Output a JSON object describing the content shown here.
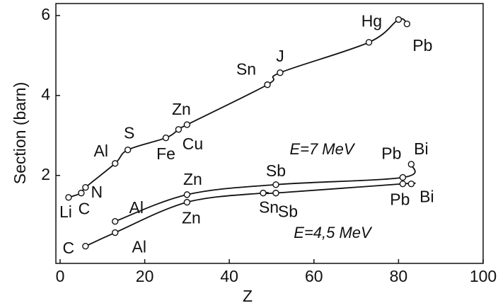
{
  "chart_data": {
    "type": "scatter",
    "xlabel": "Z",
    "ylabel": "Section (barn)",
    "xlim": [
      -1,
      100
    ],
    "ylim": [
      -0.2,
      6.3
    ],
    "xticks": [
      0,
      20,
      40,
      60,
      80,
      100
    ],
    "yticks": [
      2,
      4,
      6
    ],
    "series": [
      {
        "name": null,
        "color": "#111111",
        "x": [
          2,
          5,
          6,
          13,
          16,
          25,
          28,
          30,
          49,
          52,
          73,
          80,
          82
        ],
        "values": [
          1.45,
          1.56,
          1.7,
          2.3,
          2.64,
          2.94,
          3.15,
          3.27,
          4.27,
          4.57,
          5.33,
          5.9,
          5.79
        ],
        "labels": [
          "Li",
          "C",
          "N",
          "Al",
          "S",
          "Fe",
          "Cu",
          "Zn",
          "Sn",
          "J",
          null,
          "Hg",
          "Pb"
        ]
      },
      {
        "name": "E=7 MeV",
        "color": "#111111",
        "x": [
          13,
          30,
          51,
          81,
          83
        ],
        "values": [
          0.85,
          1.52,
          1.77,
          1.95,
          2.28
        ],
        "labels": [
          "Al",
          "Zn",
          "Sb",
          "Pb",
          "Bi"
        ]
      },
      {
        "name": "E=4,5 MeV",
        "color": "#111111",
        "x": [
          6,
          13,
          30,
          48,
          51,
          81,
          83
        ],
        "values": [
          0.23,
          0.57,
          1.33,
          1.56,
          1.56,
          1.79,
          1.79
        ],
        "labels": [
          "C",
          "Al",
          "Zn",
          "Sn",
          "Sb",
          "Pb",
          "Bi"
        ]
      }
    ]
  }
}
